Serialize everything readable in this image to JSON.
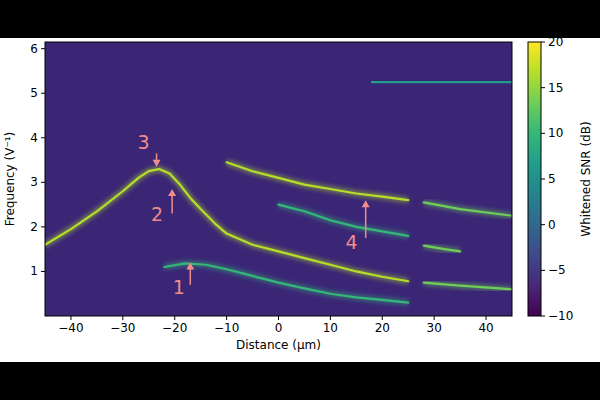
{
  "chart_data": {
    "type": "line",
    "x_label": "Distance (μm)",
    "y_label": "Frequency (V⁻¹)",
    "xlim": [
      -45,
      45
    ],
    "xticks": [
      -40,
      -30,
      -20,
      -10,
      0,
      10,
      20,
      30,
      40
    ],
    "ylim": [
      0,
      6.15
    ],
    "yticks": [
      1,
      2,
      3,
      4,
      5,
      6
    ],
    "colorbar": {
      "label": "Whitened SNR (dB)",
      "range": [
        -10,
        20
      ],
      "ticks": [
        -10,
        -5,
        0,
        5,
        10,
        15,
        20
      ]
    },
    "series": [
      {
        "color": "#b5de2b",
        "x": [
          -45,
          -40,
          -35,
          -30,
          -27,
          -25,
          -23,
          -21,
          -19,
          -17,
          -15,
          -12,
          -10,
          -5,
          0,
          5,
          10,
          15,
          20,
          25
        ],
        "values": [
          1.6,
          1.95,
          2.35,
          2.8,
          3.1,
          3.25,
          3.3,
          3.2,
          2.95,
          2.65,
          2.4,
          2.05,
          1.85,
          1.6,
          1.45,
          1.3,
          1.15,
          1.0,
          0.88,
          0.78
        ]
      },
      {
        "color": "#6ece58",
        "x": [
          28,
          35,
          45
        ],
        "values": [
          0.75,
          0.68,
          0.6
        ]
      },
      {
        "color": "#b5de2b",
        "x": [
          -10,
          -5,
          0,
          5,
          10,
          15,
          20,
          25
        ],
        "values": [
          3.45,
          3.25,
          3.1,
          2.95,
          2.85,
          2.75,
          2.68,
          2.6
        ]
      },
      {
        "color": "#6ece58",
        "x": [
          28,
          35,
          45
        ],
        "values": [
          2.55,
          2.4,
          2.25
        ]
      },
      {
        "color": "#35b779",
        "x": [
          0,
          5,
          10,
          15,
          20,
          25
        ],
        "values": [
          2.5,
          2.35,
          2.15,
          2.0,
          1.9,
          1.8
        ]
      },
      {
        "color": "#6ece58",
        "x": [
          28,
          32,
          35
        ],
        "values": [
          1.58,
          1.5,
          1.45
        ]
      },
      {
        "color": "#35b779",
        "x": [
          -22,
          -18,
          -14,
          -10,
          -5,
          0,
          5,
          10,
          15,
          20,
          25
        ],
        "values": [
          1.1,
          1.18,
          1.15,
          1.05,
          0.9,
          0.75,
          0.62,
          0.5,
          0.42,
          0.36,
          0.3
        ]
      },
      {
        "color": "#1f9e89",
        "x": [
          18,
          25,
          30,
          35,
          45
        ],
        "values": [
          5.25,
          5.25,
          5.25,
          5.25,
          5.25
        ]
      }
    ],
    "annotations": [
      {
        "text": "3",
        "x": -26,
        "y": 3.9,
        "arrow_x": -23.5,
        "arrow_from": 3.65,
        "arrow_to": 3.35
      },
      {
        "text": "2",
        "x": -23.4,
        "y": 2.28,
        "arrow_x": -20.5,
        "arrow_from": 2.3,
        "arrow_to": 2.85
      },
      {
        "text": "1",
        "x": -19.2,
        "y": 0.66,
        "arrow_x": -17,
        "arrow_from": 0.7,
        "arrow_to": 1.2
      },
      {
        "text": "4",
        "x": 14.1,
        "y": 1.65,
        "arrow_x": 16.8,
        "arrow_from": 1.75,
        "arrow_to": 2.6
      }
    ]
  }
}
